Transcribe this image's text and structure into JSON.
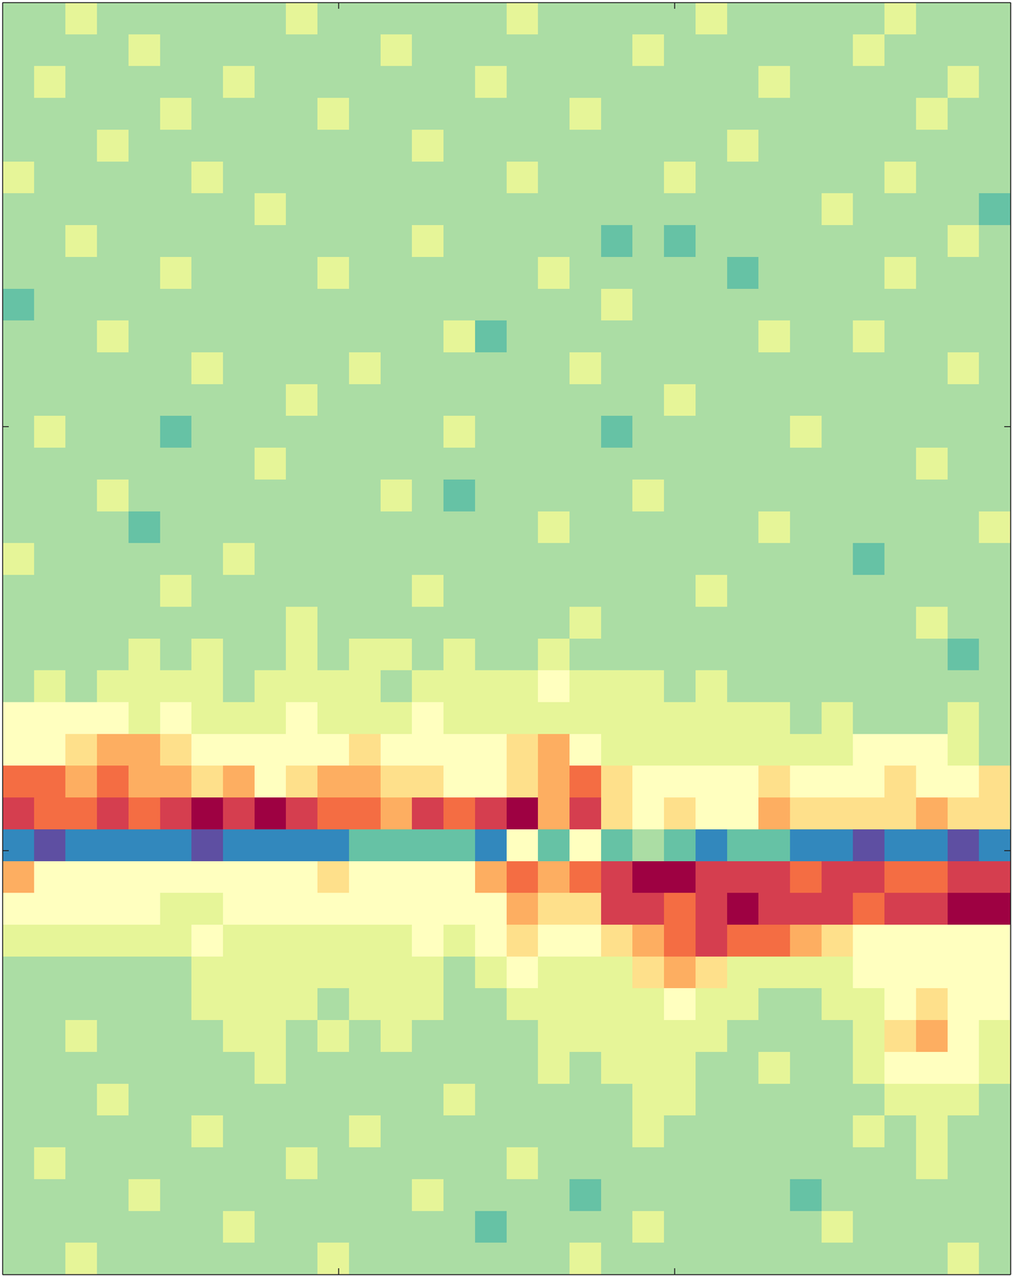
{
  "chart_data": {
    "type": "heatmap",
    "xlim": [
      0,
      3
    ],
    "ylim": [
      0,
      3
    ],
    "xticks": [
      0,
      1,
      2,
      3
    ],
    "yticks": [
      0,
      1,
      2,
      3
    ],
    "tick_labels": false,
    "zlim": [
      0,
      10
    ],
    "z": [
      [
        3,
        3,
        4,
        3,
        3,
        3,
        3,
        3,
        3,
        4,
        3,
        3,
        3,
        3,
        3,
        3,
        4,
        3,
        3,
        3,
        3,
        3,
        4,
        3,
        3,
        3,
        3,
        3,
        4,
        3,
        3,
        3
      ],
      [
        3,
        3,
        3,
        3,
        4,
        3,
        3,
        3,
        3,
        3,
        3,
        3,
        4,
        3,
        3,
        3,
        3,
        3,
        3,
        3,
        4,
        3,
        3,
        3,
        3,
        3,
        3,
        4,
        3,
        3,
        3,
        3
      ],
      [
        3,
        4,
        3,
        3,
        3,
        3,
        3,
        4,
        3,
        3,
        3,
        3,
        3,
        3,
        3,
        4,
        3,
        3,
        3,
        3,
        3,
        3,
        3,
        3,
        4,
        3,
        3,
        3,
        3,
        3,
        4,
        3
      ],
      [
        3,
        3,
        3,
        3,
        3,
        4,
        3,
        3,
        3,
        3,
        4,
        3,
        3,
        3,
        3,
        3,
        3,
        3,
        4,
        3,
        3,
        3,
        3,
        3,
        3,
        3,
        3,
        3,
        3,
        4,
        3,
        3
      ],
      [
        3,
        3,
        3,
        4,
        3,
        3,
        3,
        3,
        3,
        3,
        3,
        3,
        3,
        4,
        3,
        3,
        3,
        3,
        3,
        3,
        3,
        3,
        3,
        4,
        3,
        3,
        3,
        3,
        3,
        3,
        3,
        3
      ],
      [
        4,
        3,
        3,
        3,
        3,
        3,
        4,
        3,
        3,
        3,
        3,
        3,
        3,
        3,
        3,
        3,
        4,
        3,
        3,
        3,
        3,
        4,
        3,
        3,
        3,
        3,
        3,
        3,
        4,
        3,
        3,
        3
      ],
      [
        3,
        3,
        3,
        3,
        3,
        3,
        3,
        3,
        4,
        3,
        3,
        3,
        3,
        3,
        3,
        3,
        3,
        3,
        3,
        3,
        3,
        3,
        3,
        3,
        3,
        3,
        4,
        3,
        3,
        3,
        3,
        2
      ],
      [
        3,
        3,
        4,
        3,
        3,
        3,
        3,
        3,
        3,
        3,
        3,
        3,
        3,
        4,
        3,
        3,
        3,
        3,
        3,
        2,
        3,
        2,
        3,
        3,
        3,
        3,
        3,
        3,
        3,
        3,
        4,
        3
      ],
      [
        3,
        3,
        3,
        3,
        3,
        4,
        3,
        3,
        3,
        3,
        4,
        3,
        3,
        3,
        3,
        3,
        3,
        4,
        3,
        3,
        3,
        3,
        3,
        2,
        3,
        3,
        3,
        3,
        4,
        3,
        3,
        3
      ],
      [
        2,
        3,
        3,
        3,
        3,
        3,
        3,
        3,
        3,
        3,
        3,
        3,
        3,
        3,
        3,
        3,
        3,
        3,
        3,
        4,
        3,
        3,
        3,
        3,
        3,
        3,
        3,
        3,
        3,
        3,
        3,
        3
      ],
      [
        3,
        3,
        3,
        4,
        3,
        3,
        3,
        3,
        3,
        3,
        3,
        3,
        3,
        3,
        4,
        2,
        3,
        3,
        3,
        3,
        3,
        3,
        3,
        3,
        4,
        3,
        3,
        4,
        3,
        3,
        3,
        3
      ],
      [
        3,
        3,
        3,
        3,
        3,
        3,
        4,
        3,
        3,
        3,
        3,
        4,
        3,
        3,
        3,
        3,
        3,
        3,
        4,
        3,
        3,
        3,
        3,
        3,
        3,
        3,
        3,
        3,
        3,
        3,
        4,
        3
      ],
      [
        3,
        3,
        3,
        3,
        3,
        3,
        3,
        3,
        3,
        4,
        3,
        3,
        3,
        3,
        3,
        3,
        3,
        3,
        3,
        3,
        3,
        4,
        3,
        3,
        3,
        3,
        3,
        3,
        3,
        3,
        3,
        3
      ],
      [
        3,
        4,
        3,
        3,
        3,
        2,
        3,
        3,
        3,
        3,
        3,
        3,
        3,
        3,
        4,
        3,
        3,
        3,
        3,
        2,
        3,
        3,
        3,
        3,
        3,
        4,
        3,
        3,
        3,
        3,
        3,
        3
      ],
      [
        3,
        3,
        3,
        3,
        3,
        3,
        3,
        3,
        4,
        3,
        3,
        3,
        3,
        3,
        3,
        3,
        3,
        3,
        3,
        3,
        3,
        3,
        3,
        3,
        3,
        3,
        3,
        3,
        3,
        4,
        3,
        3
      ],
      [
        3,
        3,
        3,
        4,
        3,
        3,
        3,
        3,
        3,
        3,
        3,
        3,
        4,
        3,
        2,
        3,
        3,
        3,
        3,
        3,
        4,
        3,
        3,
        3,
        3,
        3,
        3,
        3,
        3,
        3,
        3,
        3
      ],
      [
        3,
        3,
        3,
        3,
        2,
        3,
        3,
        3,
        3,
        3,
        3,
        3,
        3,
        3,
        3,
        3,
        3,
        4,
        3,
        3,
        3,
        3,
        3,
        3,
        4,
        3,
        3,
        3,
        3,
        3,
        3,
        4
      ],
      [
        4,
        3,
        3,
        3,
        3,
        3,
        3,
        4,
        3,
        3,
        3,
        3,
        3,
        3,
        3,
        3,
        3,
        3,
        3,
        3,
        3,
        3,
        3,
        3,
        3,
        3,
        3,
        2,
        3,
        3,
        3,
        3
      ],
      [
        3,
        3,
        3,
        3,
        3,
        4,
        3,
        3,
        3,
        3,
        3,
        3,
        3,
        4,
        3,
        3,
        3,
        3,
        3,
        3,
        3,
        3,
        4,
        3,
        3,
        3,
        3,
        3,
        3,
        3,
        3,
        3
      ],
      [
        3,
        3,
        3,
        3,
        3,
        3,
        3,
        3,
        3,
        4,
        3,
        3,
        3,
        3,
        3,
        3,
        3,
        3,
        4,
        3,
        3,
        3,
        3,
        3,
        3,
        3,
        3,
        3,
        3,
        4,
        3,
        3
      ],
      [
        3,
        3,
        3,
        3,
        4,
        3,
        4,
        3,
        3,
        4,
        3,
        4,
        4,
        3,
        4,
        3,
        3,
        4,
        3,
        3,
        3,
        3,
        3,
        3,
        3,
        3,
        3,
        3,
        3,
        3,
        2,
        3
      ],
      [
        3,
        4,
        3,
        4,
        4,
        4,
        4,
        3,
        4,
        4,
        4,
        4,
        3,
        4,
        4,
        4,
        4,
        5,
        4,
        4,
        4,
        3,
        4,
        3,
        3,
        3,
        3,
        3,
        3,
        3,
        3,
        3
      ],
      [
        5,
        5,
        5,
        5,
        4,
        5,
        4,
        4,
        4,
        5,
        4,
        4,
        4,
        5,
        4,
        4,
        4,
        4,
        4,
        4,
        4,
        4,
        4,
        4,
        4,
        3,
        4,
        3,
        3,
        3,
        4,
        3
      ],
      [
        5,
        5,
        6,
        7,
        7,
        6,
        5,
        5,
        5,
        5,
        5,
        6,
        5,
        5,
        5,
        5,
        6,
        7,
        5,
        4,
        4,
        4,
        4,
        4,
        4,
        4,
        4,
        5,
        5,
        5,
        4,
        3
      ],
      [
        8,
        8,
        7,
        8,
        7,
        7,
        6,
        7,
        5,
        6,
        7,
        7,
        6,
        6,
        5,
        5,
        6,
        7,
        8,
        6,
        5,
        5,
        5,
        5,
        6,
        5,
        5,
        5,
        6,
        5,
        5,
        6
      ],
      [
        9,
        8,
        8,
        9,
        8,
        9,
        10,
        9,
        10,
        9,
        8,
        8,
        7,
        9,
        8,
        9,
        10,
        7,
        9,
        6,
        5,
        6,
        5,
        5,
        7,
        6,
        6,
        6,
        6,
        7,
        6,
        6
      ],
      [
        1,
        0,
        1,
        1,
        1,
        1,
        0,
        1,
        1,
        1,
        1,
        2,
        2,
        2,
        2,
        1,
        5,
        2,
        5,
        2,
        3,
        2,
        1,
        2,
        2,
        1,
        1,
        0,
        1,
        1,
        0,
        1
      ],
      [
        7,
        5,
        5,
        5,
        5,
        5,
        5,
        5,
        5,
        5,
        6,
        5,
        5,
        5,
        5,
        7,
        8,
        7,
        8,
        9,
        10,
        10,
        9,
        9,
        9,
        8,
        9,
        9,
        8,
        8,
        9,
        9
      ],
      [
        5,
        5,
        5,
        5,
        5,
        4,
        4,
        5,
        5,
        5,
        5,
        5,
        5,
        5,
        5,
        5,
        7,
        6,
        6,
        9,
        9,
        8,
        9,
        10,
        9,
        9,
        9,
        8,
        9,
        9,
        10,
        10
      ],
      [
        4,
        4,
        4,
        4,
        4,
        4,
        5,
        4,
        4,
        4,
        4,
        4,
        4,
        5,
        4,
        5,
        6,
        5,
        5,
        6,
        7,
        8,
        9,
        8,
        8,
        7,
        6,
        5,
        5,
        5,
        5,
        5
      ],
      [
        3,
        3,
        3,
        3,
        3,
        3,
        4,
        4,
        4,
        4,
        4,
        4,
        4,
        4,
        3,
        4,
        5,
        4,
        4,
        4,
        6,
        7,
        6,
        4,
        4,
        4,
        4,
        5,
        5,
        5,
        5,
        5
      ],
      [
        3,
        3,
        3,
        3,
        3,
        3,
        4,
        4,
        4,
        4,
        3,
        4,
        4,
        4,
        3,
        3,
        4,
        4,
        4,
        4,
        4,
        5,
        4,
        4,
        3,
        3,
        4,
        4,
        5,
        6,
        5,
        5
      ],
      [
        3,
        3,
        4,
        3,
        3,
        3,
        3,
        4,
        4,
        3,
        4,
        3,
        4,
        3,
        3,
        3,
        3,
        4,
        4,
        4,
        4,
        4,
        4,
        3,
        3,
        3,
        3,
        4,
        6,
        7,
        5,
        4
      ],
      [
        3,
        3,
        3,
        3,
        3,
        3,
        3,
        3,
        4,
        3,
        3,
        3,
        3,
        3,
        3,
        3,
        3,
        4,
        3,
        4,
        4,
        4,
        3,
        3,
        4,
        3,
        3,
        4,
        5,
        5,
        5,
        4
      ],
      [
        3,
        3,
        3,
        4,
        3,
        3,
        3,
        3,
        3,
        3,
        3,
        3,
        3,
        3,
        4,
        3,
        3,
        3,
        3,
        3,
        4,
        4,
        3,
        3,
        3,
        3,
        3,
        3,
        4,
        4,
        4,
        3
      ],
      [
        3,
        3,
        3,
        3,
        3,
        3,
        4,
        3,
        3,
        3,
        3,
        4,
        3,
        3,
        3,
        3,
        3,
        3,
        3,
        3,
        4,
        3,
        3,
        3,
        3,
        3,
        3,
        4,
        3,
        4,
        3,
        3
      ],
      [
        3,
        4,
        3,
        3,
        3,
        3,
        3,
        3,
        3,
        4,
        3,
        3,
        3,
        3,
        3,
        3,
        4,
        3,
        3,
        3,
        3,
        3,
        3,
        3,
        3,
        3,
        3,
        3,
        3,
        4,
        3,
        3
      ],
      [
        3,
        3,
        3,
        3,
        4,
        3,
        3,
        3,
        3,
        3,
        3,
        3,
        3,
        4,
        3,
        3,
        3,
        3,
        2,
        3,
        3,
        3,
        3,
        3,
        3,
        2,
        3,
        3,
        3,
        3,
        3,
        3
      ],
      [
        3,
        3,
        3,
        3,
        3,
        3,
        3,
        4,
        3,
        3,
        3,
        3,
        3,
        3,
        3,
        2,
        3,
        3,
        3,
        3,
        4,
        3,
        3,
        3,
        3,
        3,
        4,
        3,
        3,
        3,
        3,
        3
      ],
      [
        3,
        3,
        4,
        3,
        3,
        3,
        3,
        3,
        3,
        3,
        4,
        3,
        3,
        3,
        3,
        3,
        3,
        3,
        4,
        3,
        3,
        3,
        3,
        3,
        3,
        3,
        3,
        3,
        3,
        3,
        4,
        3
      ]
    ]
  }
}
